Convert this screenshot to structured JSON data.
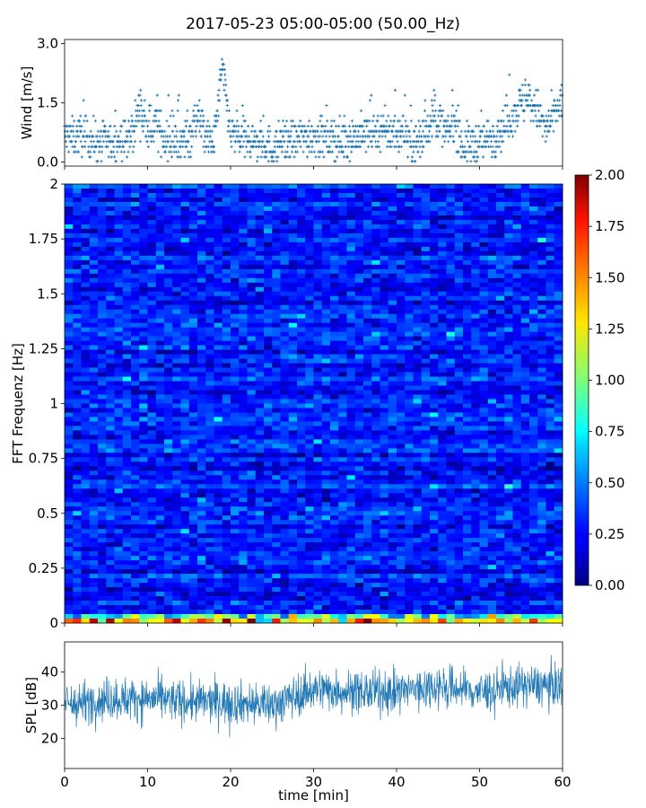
{
  "figure": {
    "title": "2017-05-23 05:00-05:00 (50.00_Hz)"
  },
  "chart_data": [
    {
      "type": "scatter",
      "name": "wind-panel",
      "ylabel": "Wind [m/s]",
      "xlim": [
        0,
        60
      ],
      "ylim": [
        -0.1,
        3.1
      ],
      "yticks": [
        "0.0",
        "1.5",
        "3.0"
      ],
      "ytick_values": [
        0,
        1.5,
        3.0
      ],
      "marker": "+",
      "color": "#1f77b4",
      "approx_envelope": {
        "note_free": true,
        "x": [
          0,
          2,
          4,
          6,
          8,
          9,
          10,
          11,
          12,
          13,
          15,
          16,
          17,
          18,
          19,
          20,
          22,
          24,
          25,
          26,
          28,
          30,
          32,
          34,
          36,
          38,
          40,
          41,
          42,
          43,
          44,
          45,
          46,
          47,
          48,
          50,
          52,
          53,
          54,
          55,
          56,
          57,
          58,
          59,
          60
        ],
        "y": [
          0.6,
          0.7,
          0.5,
          0.5,
          0.6,
          1.4,
          0.7,
          1.0,
          0.6,
          0.5,
          0.6,
          1.2,
          0.6,
          0.5,
          2.4,
          0.7,
          0.5,
          0.5,
          0.3,
          0.5,
          0.6,
          0.7,
          0.5,
          0.6,
          0.7,
          0.8,
          0.7,
          0.8,
          0.4,
          0.6,
          1.0,
          1.1,
          0.7,
          1.0,
          0.4,
          0.5,
          0.7,
          0.9,
          1.2,
          1.5,
          1.5,
          1.3,
          0.8,
          1.2,
          1.6
        ]
      }
    },
    {
      "type": "heatmap",
      "name": "spectrogram-panel",
      "ylabel": "FFT Frequenz [Hz]",
      "xlim": [
        0,
        60
      ],
      "ylim": [
        0,
        2
      ],
      "yticks": [
        "0",
        "0.25",
        "0.5",
        "0.75",
        "1",
        "1.25",
        "1.5",
        "1.75",
        "2"
      ],
      "ytick_values": [
        0,
        0.25,
        0.5,
        0.75,
        1,
        1.25,
        1.5,
        1.75,
        2
      ],
      "colormap": "jet",
      "clim": [
        0,
        2
      ],
      "colorbar_ticks": [
        "0.00",
        "0.25",
        "0.50",
        "0.75",
        "1.00",
        "1.25",
        "1.50",
        "1.75",
        "2.00"
      ],
      "colorbar_tick_values": [
        0,
        0.25,
        0.5,
        0.75,
        1,
        1.25,
        1.5,
        1.75,
        2
      ],
      "typical_value": 0.3,
      "lowest_band_value": 1.4
    },
    {
      "type": "area",
      "name": "spl-panel",
      "ylabel": "SPL [dB]",
      "xlabel": "time [min]",
      "xlim": [
        0,
        60
      ],
      "ylim": [
        11,
        49
      ],
      "xticks": [
        "0",
        "10",
        "20",
        "30",
        "40",
        "50",
        "60"
      ],
      "xtick_values": [
        0,
        10,
        20,
        30,
        40,
        50,
        60
      ],
      "yticks": [
        "20",
        "30",
        "40"
      ],
      "ytick_values": [
        20,
        30,
        40
      ],
      "color": "#1f77b4",
      "approx_mean": {
        "x": [
          0,
          5,
          10,
          15,
          20,
          25,
          30,
          35,
          40,
          45,
          50,
          55,
          60
        ],
        "y": [
          30,
          32,
          32,
          31,
          31,
          30,
          35,
          34,
          34,
          36,
          34,
          36,
          36
        ]
      },
      "approx_spread": 7
    }
  ]
}
